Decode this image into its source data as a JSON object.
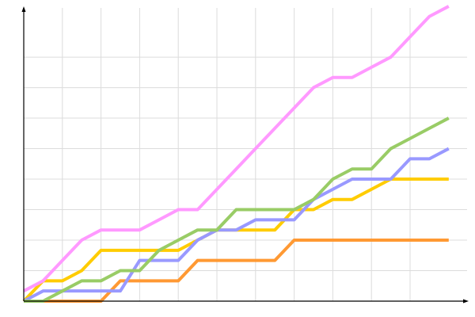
{
  "chart_data": {
    "type": "line",
    "title": "",
    "xlabel": "",
    "ylabel": "",
    "grid": true,
    "legend": "none",
    "x": [
      0,
      1,
      2,
      3,
      4,
      5,
      6,
      7,
      8,
      9,
      10,
      11,
      12,
      13,
      14,
      15,
      16,
      17,
      18,
      19,
      20,
      21,
      22
    ],
    "xlim": [
      0,
      23
    ],
    "ylim": [
      0,
      28.8
    ],
    "x_grid_every": 2,
    "y_grid_every": 3,
    "series": [
      {
        "color": "#ff99ff",
        "values": [
          1,
          2,
          4,
          6,
          7,
          7,
          7,
          8,
          9,
          9,
          11,
          13,
          15,
          17,
          19,
          21,
          22,
          22,
          23,
          24,
          26,
          28,
          29
        ]
      },
      {
        "color": "#99cc66",
        "values": [
          0,
          0,
          1,
          2,
          2,
          3,
          3,
          5,
          6,
          7,
          7,
          9,
          9,
          9,
          9,
          10,
          12,
          13,
          13,
          15,
          16,
          17,
          18
        ]
      },
      {
        "color": "#9999ff",
        "values": [
          0,
          1,
          1,
          1,
          1,
          1,
          4,
          4,
          4,
          6,
          7,
          7,
          8,
          8,
          8,
          10,
          11,
          12,
          12,
          12,
          14,
          14,
          15
        ]
      },
      {
        "color": "#ffcc00",
        "values": [
          0,
          2,
          2,
          3,
          5,
          5,
          5,
          5,
          5,
          6,
          7,
          7,
          7,
          7,
          9,
          9,
          10,
          10,
          11,
          12,
          12,
          12,
          12
        ]
      },
      {
        "color": "#ff9933",
        "values": [
          0,
          0,
          0,
          0,
          0,
          2,
          2,
          2,
          2,
          4,
          4,
          4,
          4,
          4,
          6,
          6,
          6,
          6,
          6,
          6,
          6,
          6,
          6
        ]
      }
    ]
  }
}
